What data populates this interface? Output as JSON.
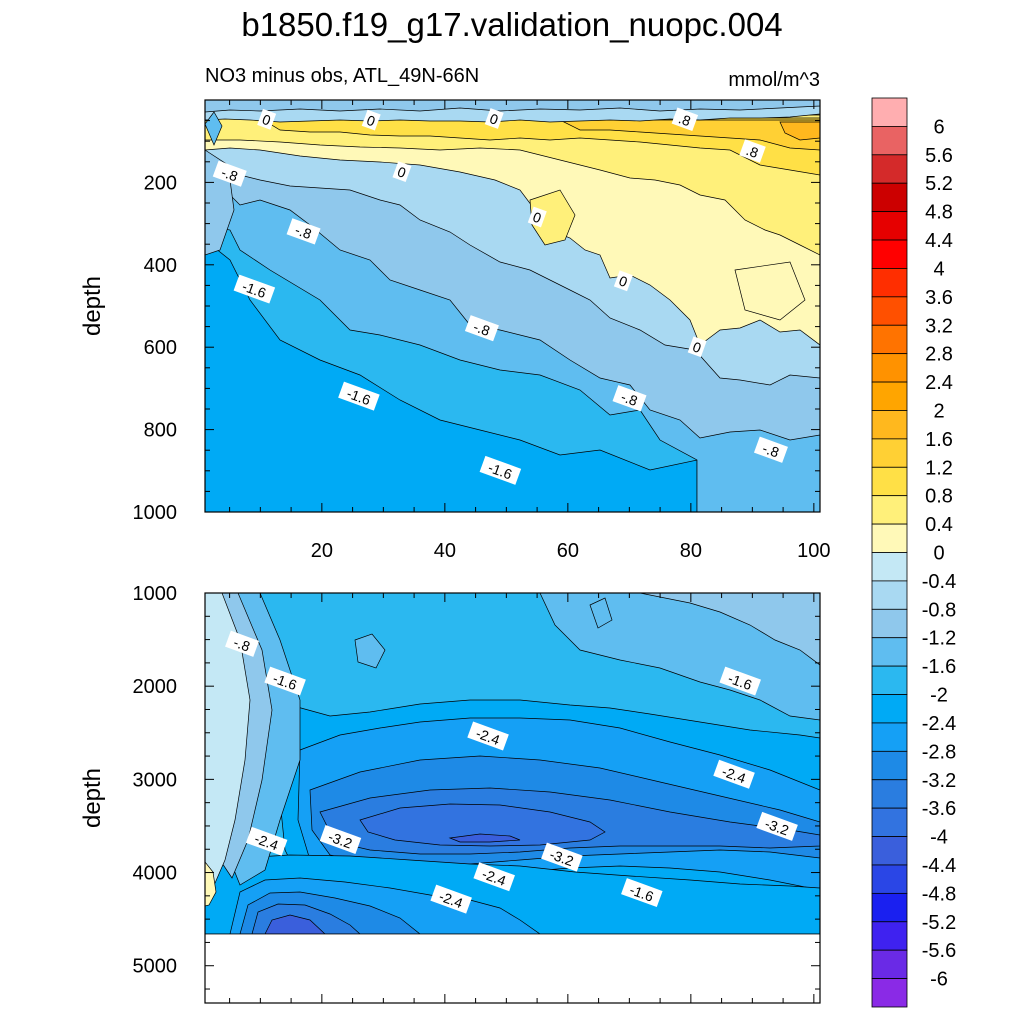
{
  "title": "b1850.f19_g17.validation_nuopc.004",
  "chart_data": [
    {
      "type": "heatmap",
      "name": "upper-panel",
      "subtitle_left": "NO3 minus obs, ATL_49N-66N",
      "subtitle_right": "mmol/m^3",
      "ylabel": "depth",
      "xlabel": "",
      "xlim": [
        1,
        101
      ],
      "ylim": [
        1000,
        0
      ],
      "x_ticks": [
        "20",
        "40",
        "60",
        "80",
        "100"
      ],
      "y_ticks": [
        "200",
        "400",
        "600",
        "800",
        "1000"
      ],
      "contour_labels": [
        {
          "text": "0",
          "x": 11,
          "y": 48
        },
        {
          "text": "0",
          "x": 28,
          "y": 50
        },
        {
          "text": "0",
          "x": 48,
          "y": 46
        },
        {
          "text": ".8",
          "x": 79,
          "y": 48
        },
        {
          "text": ".8",
          "x": 90,
          "y": 125
        },
        {
          "text": "0",
          "x": 33,
          "y": 175
        },
        {
          "text": "-.8",
          "x": 5,
          "y": 180
        },
        {
          "text": "-.8",
          "x": 17,
          "y": 320
        },
        {
          "text": "0",
          "x": 55,
          "y": 285
        },
        {
          "text": "-1.6",
          "x": 9,
          "y": 460
        },
        {
          "text": "0",
          "x": 69,
          "y": 440
        },
        {
          "text": "-.8",
          "x": 46,
          "y": 555
        },
        {
          "text": "0",
          "x": 81,
          "y": 600
        },
        {
          "text": "-1.6",
          "x": 26,
          "y": 720
        },
        {
          "text": "-.8",
          "x": 70,
          "y": 725
        },
        {
          "text": "-1.6",
          "x": 49,
          "y": 900
        },
        {
          "text": "-.8",
          "x": 93,
          "y": 850
        }
      ]
    },
    {
      "type": "heatmap",
      "name": "lower-panel",
      "ylabel": "depth",
      "xlim": [
        1,
        101
      ],
      "ylim": [
        5400,
        1000
      ],
      "y_ticks": [
        "1000",
        "2000",
        "3000",
        "4000",
        "5000"
      ],
      "contour_labels": [
        {
          "text": "-.8",
          "x": 7,
          "y": 1550
        },
        {
          "text": "-1.6",
          "x": 14,
          "y": 1950
        },
        {
          "text": "-1.6",
          "x": 88,
          "y": 1950
        },
        {
          "text": "-2.4",
          "x": 47,
          "y": 2540
        },
        {
          "text": "-2.4",
          "x": 87,
          "y": 2950
        },
        {
          "text": "-2.4",
          "x": 11,
          "y": 3670
        },
        {
          "text": "-3.2",
          "x": 23,
          "y": 3650
        },
        {
          "text": "-3.2",
          "x": 94,
          "y": 3510
        },
        {
          "text": "-3.2",
          "x": 59,
          "y": 3840
        },
        {
          "text": "-2.4",
          "x": 48,
          "y": 4050
        },
        {
          "text": "-1.6",
          "x": 72,
          "y": 4220
        },
        {
          "text": "-2.4",
          "x": 41,
          "y": 4290
        }
      ]
    }
  ],
  "colorbar": {
    "labels": [
      "6",
      "5.6",
      "5.2",
      "4.8",
      "4.4",
      "4",
      "3.6",
      "3.2",
      "2.8",
      "2.4",
      "2",
      "1.6",
      "1.2",
      "0.8",
      "0.4",
      "0",
      "-0.4",
      "-0.8",
      "-1.2",
      "-1.6",
      "-2",
      "-2.4",
      "-2.8",
      "-3.2",
      "-3.6",
      "-4",
      "-4.4",
      "-4.8",
      "-5.2",
      "-5.6",
      "-6"
    ],
    "colors": [
      "#ffaeb0",
      "#e96363",
      "#d42a2a",
      "#cc0000",
      "#e60000",
      "#ff0000",
      "#ff2e00",
      "#ff5000",
      "#ff7300",
      "#ff9200",
      "#ffa500",
      "#ffb81e",
      "#ffd034",
      "#ffe046",
      "#fff07a",
      "#fff9b8",
      "#c4e8f5",
      "#a9d9f2",
      "#8fc8ec",
      "#5fbdf0",
      "#2bb8f0",
      "#00aaf5",
      "#15a0f5",
      "#1e8ae6",
      "#2a7de0",
      "#3273e0",
      "#3a5fdc",
      "#2a46e6",
      "#1a20f0",
      "#3f22f0",
      "#6a2ae6",
      "#8a2ae6"
    ]
  }
}
